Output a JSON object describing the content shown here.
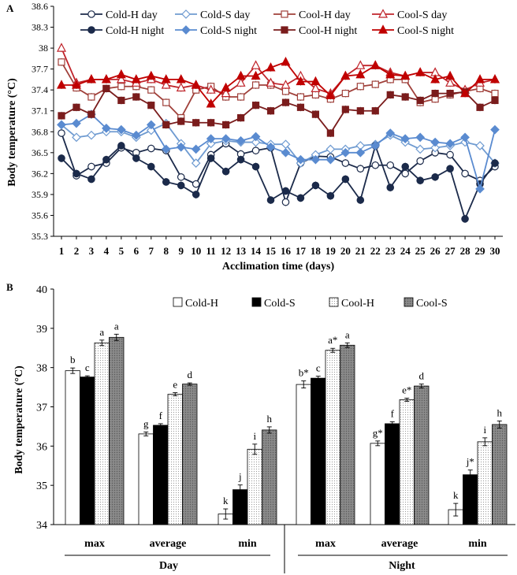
{
  "chart_data": [
    {
      "type": "line",
      "panel_label": "A",
      "xlabel": "Acclimation time (days)",
      "ylabel": "Body temperature (°C)",
      "ylim": [
        35.3,
        38.6
      ],
      "yticks": [
        "35.3",
        "35.6",
        "35.9",
        "36.2",
        "36.5",
        "36.8",
        "37.1",
        "37.4",
        "37.7",
        "38",
        "38.3",
        "38.6"
      ],
      "x": [
        1,
        2,
        3,
        4,
        5,
        6,
        7,
        8,
        9,
        10,
        11,
        12,
        13,
        14,
        15,
        16,
        17,
        18,
        19,
        20,
        21,
        22,
        23,
        24,
        25,
        26,
        27,
        28,
        29,
        30
      ],
      "series": [
        {
          "name": "Cold-H day",
          "color": "#1b2a4a",
          "marker": "circle-open",
          "values": [
            36.78,
            36.17,
            36.3,
            36.35,
            36.57,
            36.5,
            36.56,
            36.53,
            36.15,
            36.05,
            36.47,
            36.63,
            36.48,
            36.53,
            36.57,
            35.79,
            36.35,
            36.45,
            36.44,
            36.35,
            36.27,
            36.32,
            36.32,
            36.2,
            36.38,
            36.5,
            36.47,
            36.2,
            36.1,
            36.3
          ]
        },
        {
          "name": "Cold-S day",
          "color": "#6f9bd1",
          "marker": "diamond-open",
          "values": [
            36.9,
            36.72,
            36.75,
            36.8,
            36.8,
            36.72,
            36.82,
            36.92,
            36.63,
            36.35,
            36.63,
            36.67,
            36.65,
            36.65,
            36.62,
            36.62,
            36.35,
            36.47,
            36.55,
            36.55,
            36.6,
            36.62,
            36.75,
            36.65,
            36.55,
            36.57,
            36.6,
            36.65,
            36.6,
            36.35
          ]
        },
        {
          "name": "Cool-H day",
          "color": "#a0403a",
          "marker": "square-open",
          "values": [
            37.8,
            37.43,
            37.3,
            37.42,
            37.45,
            37.45,
            37.4,
            37.22,
            37.0,
            37.4,
            37.45,
            37.3,
            37.3,
            37.47,
            37.47,
            37.38,
            37.3,
            37.33,
            37.27,
            37.35,
            37.45,
            37.48,
            37.55,
            37.55,
            37.22,
            37.27,
            37.33,
            37.38,
            37.42,
            37.35
          ]
        },
        {
          "name": "Cool-S day",
          "color": "#c0242b",
          "marker": "triangle-open",
          "values": [
            38.0,
            37.5,
            37.55,
            37.55,
            37.55,
            37.5,
            37.55,
            37.47,
            37.43,
            37.47,
            37.4,
            37.35,
            37.5,
            37.75,
            37.5,
            37.47,
            37.6,
            37.42,
            37.35,
            37.6,
            37.75,
            37.75,
            37.65,
            37.6,
            37.65,
            37.65,
            37.5,
            37.4,
            37.5,
            37.55
          ]
        },
        {
          "name": "Cold-H night",
          "color": "#1b2a4a",
          "marker": "circle-filled",
          "values": [
            36.42,
            36.2,
            36.12,
            36.4,
            36.6,
            36.42,
            36.3,
            36.08,
            36.03,
            35.9,
            36.42,
            36.23,
            36.4,
            36.3,
            35.82,
            35.95,
            35.85,
            36.03,
            35.88,
            36.12,
            35.82,
            36.6,
            36.0,
            36.3,
            36.1,
            36.15,
            36.27,
            35.55,
            36.05,
            36.35
          ]
        },
        {
          "name": "Cold-S night",
          "color": "#5a8bd0",
          "marker": "diamond-filled",
          "values": [
            36.9,
            36.92,
            37.05,
            36.85,
            36.83,
            36.75,
            36.9,
            36.55,
            36.58,
            36.55,
            36.7,
            36.7,
            36.67,
            36.73,
            36.58,
            36.5,
            36.4,
            36.4,
            36.4,
            36.5,
            36.5,
            36.6,
            36.78,
            36.7,
            36.72,
            36.65,
            36.63,
            36.72,
            35.98,
            36.83
          ]
        },
        {
          "name": "Cool-H night",
          "color": "#7a1c1c",
          "marker": "square-filled",
          "values": [
            37.03,
            37.15,
            37.05,
            37.42,
            37.25,
            37.3,
            37.18,
            36.9,
            36.95,
            36.93,
            36.93,
            36.9,
            37.0,
            37.18,
            37.1,
            37.22,
            37.15,
            37.05,
            36.78,
            37.12,
            37.1,
            37.1,
            37.33,
            37.3,
            37.25,
            37.35,
            37.35,
            37.37,
            37.15,
            37.25
          ]
        },
        {
          "name": "Cool-S night",
          "color": "#c00000",
          "marker": "triangle-filled",
          "values": [
            37.47,
            37.47,
            37.55,
            37.55,
            37.62,
            37.55,
            37.6,
            37.55,
            37.55,
            37.47,
            37.2,
            37.43,
            37.6,
            37.6,
            37.72,
            37.8,
            37.52,
            37.52,
            37.32,
            37.6,
            37.62,
            37.75,
            37.62,
            37.6,
            37.65,
            37.55,
            37.6,
            37.35,
            37.55,
            37.55
          ]
        }
      ]
    },
    {
      "type": "bar",
      "panel_label": "B",
      "ylabel": "Body temperature (°C)",
      "ylim": [
        34,
        40
      ],
      "yticks": [
        "34",
        "35",
        "36",
        "37",
        "38",
        "39",
        "40"
      ],
      "groups": [
        {
          "label": "Day",
          "categories": [
            "max",
            "average",
            "min"
          ]
        },
        {
          "label": "Night",
          "categories": [
            "max",
            "average",
            "min"
          ]
        }
      ],
      "series": [
        {
          "name": "Cold-H",
          "fill": "white",
          "values": [
            37.92,
            36.31,
            34.27,
            37.57,
            36.07,
            34.38
          ],
          "errors": [
            0.07,
            0.05,
            0.13,
            0.09,
            0.06,
            0.16
          ],
          "letters": [
            "b",
            "g",
            "k",
            "b*",
            "g*",
            "k"
          ]
        },
        {
          "name": "Cold-S",
          "fill": "black",
          "values": [
            37.76,
            36.53,
            34.89,
            37.73,
            36.57,
            35.27
          ],
          "errors": [
            0.03,
            0.04,
            0.12,
            0.05,
            0.05,
            0.12
          ],
          "letters": [
            "c",
            "f",
            "j",
            "c",
            "f",
            "j*"
          ]
        },
        {
          "name": "Cool-H",
          "fill": "dotted",
          "values": [
            38.63,
            37.32,
            35.92,
            38.44,
            37.18,
            36.11
          ],
          "errors": [
            0.07,
            0.04,
            0.13,
            0.05,
            0.04,
            0.1
          ],
          "letters": [
            "a",
            "e",
            "i",
            "a*",
            "e*",
            "i"
          ]
        },
        {
          "name": "Cool-S",
          "fill": "gray",
          "values": [
            38.77,
            37.58,
            36.41,
            38.57,
            37.53,
            36.55
          ],
          "errors": [
            0.08,
            0.03,
            0.08,
            0.06,
            0.05,
            0.09
          ],
          "letters": [
            "a",
            "d",
            "h",
            "a",
            "d",
            "h"
          ]
        }
      ]
    }
  ]
}
